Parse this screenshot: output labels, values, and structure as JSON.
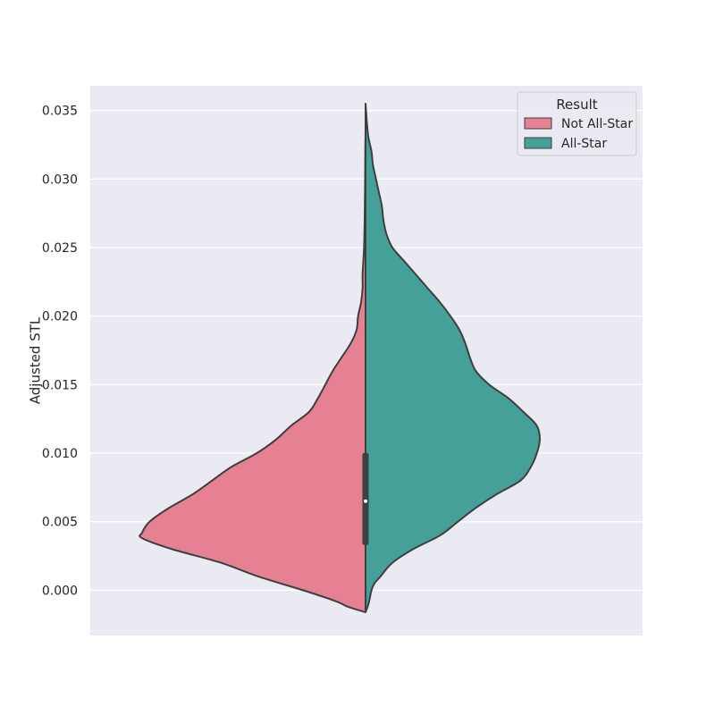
{
  "chart_data": {
    "type": "violin",
    "split": true,
    "title": "",
    "xlabel": "",
    "ylabel": "Adjusted STL",
    "ylim": [
      -0.0033,
      0.0368
    ],
    "yticks": [
      "0.000",
      "0.005",
      "0.010",
      "0.015",
      "0.020",
      "0.025",
      "0.030",
      "0.035"
    ],
    "ytick_values": [
      0.0,
      0.005,
      0.01,
      0.015,
      0.02,
      0.025,
      0.03,
      0.035
    ],
    "grid": true,
    "legend": {
      "title": "Result",
      "position": "top-right"
    },
    "colors": {
      "background": "#eaeaf2",
      "grid": "#ffffff",
      "outline": "#3f3f3f",
      "box": "#3f3f3f",
      "median": "#ffffff"
    },
    "series": [
      {
        "name": "Not All-Star",
        "side": "left",
        "color": "#e68193",
        "density": [
          [
            -0.0016,
            0.002
          ],
          [
            -0.0012,
            0.12
          ],
          [
            -0.0008,
            0.2
          ],
          [
            0.0,
            0.42
          ],
          [
            0.001,
            0.72
          ],
          [
            0.002,
            0.97
          ],
          [
            0.003,
            1.3
          ],
          [
            0.0038,
            1.5
          ],
          [
            0.0042,
            1.5
          ],
          [
            0.005,
            1.45
          ],
          [
            0.006,
            1.32
          ],
          [
            0.007,
            1.16
          ],
          [
            0.008,
            1.03
          ],
          [
            0.009,
            0.9
          ],
          [
            0.01,
            0.73
          ],
          [
            0.011,
            0.6
          ],
          [
            0.012,
            0.5
          ],
          [
            0.013,
            0.38
          ],
          [
            0.014,
            0.32
          ],
          [
            0.015,
            0.27
          ],
          [
            0.016,
            0.22
          ],
          [
            0.017,
            0.16
          ],
          [
            0.018,
            0.1
          ],
          [
            0.019,
            0.06
          ],
          [
            0.02,
            0.05
          ],
          [
            0.021,
            0.03
          ],
          [
            0.022,
            0.02
          ],
          [
            0.023,
            0.02
          ],
          [
            0.024,
            0.015
          ],
          [
            0.025,
            0.01
          ],
          [
            0.026,
            0.008
          ],
          [
            0.027,
            0.006
          ],
          [
            0.028,
            0.005
          ],
          [
            0.03,
            0.003
          ],
          [
            0.032,
            0.002
          ],
          [
            0.0335,
            0.0
          ]
        ]
      },
      {
        "name": "All-Star",
        "side": "right",
        "color": "#45a099",
        "density": [
          [
            -0.0016,
            0.0
          ],
          [
            -0.001,
            0.02
          ],
          [
            0.0,
            0.04
          ],
          [
            0.0005,
            0.06
          ],
          [
            0.001,
            0.1
          ],
          [
            0.002,
            0.18
          ],
          [
            0.003,
            0.32
          ],
          [
            0.004,
            0.5
          ],
          [
            0.005,
            0.62
          ],
          [
            0.006,
            0.74
          ],
          [
            0.007,
            0.88
          ],
          [
            0.008,
            1.04
          ],
          [
            0.009,
            1.11
          ],
          [
            0.01,
            1.15
          ],
          [
            0.011,
            1.17
          ],
          [
            0.012,
            1.15
          ],
          [
            0.013,
            1.06
          ],
          [
            0.014,
            0.96
          ],
          [
            0.015,
            0.83
          ],
          [
            0.016,
            0.74
          ],
          [
            0.017,
            0.7
          ],
          [
            0.018,
            0.67
          ],
          [
            0.019,
            0.63
          ],
          [
            0.02,
            0.57
          ],
          [
            0.021,
            0.5
          ],
          [
            0.022,
            0.42
          ],
          [
            0.023,
            0.34
          ],
          [
            0.024,
            0.26
          ],
          [
            0.025,
            0.18
          ],
          [
            0.026,
            0.14
          ],
          [
            0.027,
            0.12
          ],
          [
            0.028,
            0.11
          ],
          [
            0.029,
            0.09
          ],
          [
            0.03,
            0.07
          ],
          [
            0.031,
            0.05
          ],
          [
            0.032,
            0.04
          ],
          [
            0.033,
            0.02
          ],
          [
            0.034,
            0.01
          ],
          [
            0.0355,
            0.0
          ]
        ]
      }
    ],
    "box": {
      "q1": 0.0033,
      "median": 0.0065,
      "q3": 0.01,
      "whisker_low": -0.0016,
      "whisker_high": 0.0355
    }
  }
}
